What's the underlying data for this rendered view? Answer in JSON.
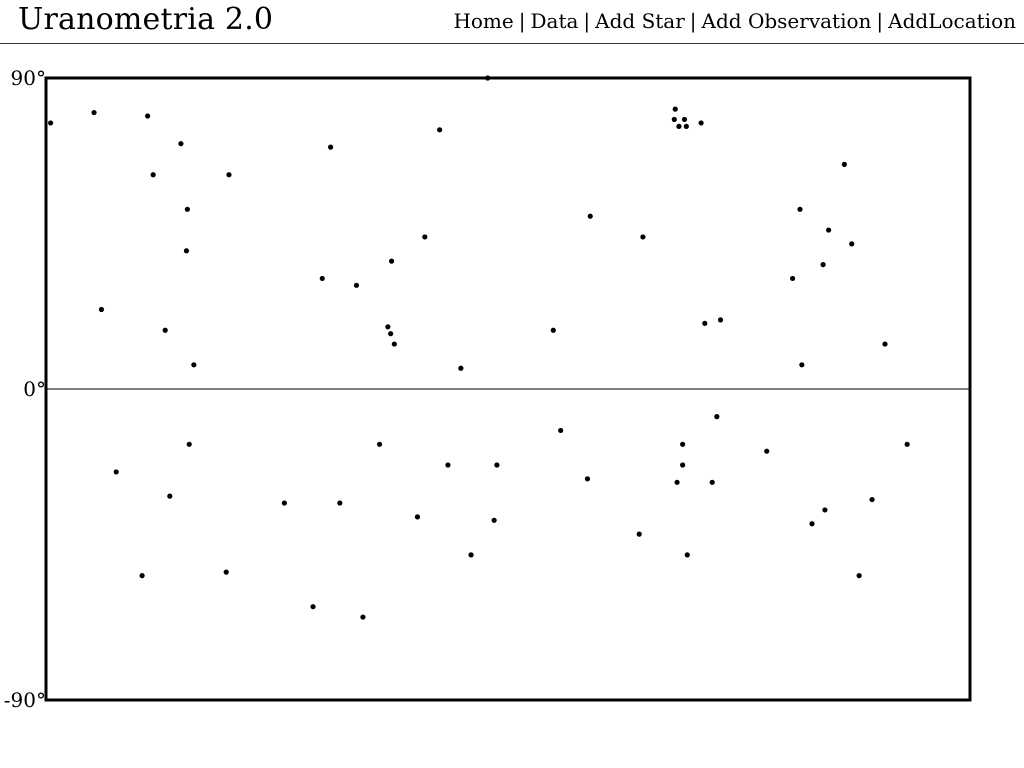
{
  "header": {
    "site_title": "Uranometria 2.0",
    "nav": [
      {
        "label": "Home"
      },
      {
        "label": "Data"
      },
      {
        "label": "Add Star"
      },
      {
        "label": "Add Observation"
      },
      {
        "label": "AddLocation"
      }
    ],
    "separator": "|"
  },
  "colors": {
    "background": "#ffffff",
    "ink": "#000000"
  },
  "chart_data": {
    "type": "scatter",
    "title": "",
    "xlabel": "",
    "ylabel": "",
    "ylim": [
      -90,
      90
    ],
    "xlim": [
      0,
      100
    ],
    "yticks": [
      {
        "value": 90,
        "label": "90°"
      },
      {
        "value": 0,
        "label": "0°"
      },
      {
        "value": -90,
        "label": "-90°"
      }
    ],
    "grid": false,
    "reference_lines": [
      0
    ],
    "points": [
      {
        "x": 0.5,
        "y": 77
      },
      {
        "x": 5.2,
        "y": 80
      },
      {
        "x": 11.0,
        "y": 79
      },
      {
        "x": 14.6,
        "y": 71
      },
      {
        "x": 11.6,
        "y": 62
      },
      {
        "x": 19.8,
        "y": 62
      },
      {
        "x": 15.3,
        "y": 52
      },
      {
        "x": 15.2,
        "y": 40
      },
      {
        "x": 6.0,
        "y": 23
      },
      {
        "x": 12.9,
        "y": 17
      },
      {
        "x": 16.0,
        "y": 7
      },
      {
        "x": 30.8,
        "y": 70
      },
      {
        "x": 42.6,
        "y": 75
      },
      {
        "x": 47.8,
        "y": 90
      },
      {
        "x": 29.9,
        "y": 32
      },
      {
        "x": 33.6,
        "y": 30
      },
      {
        "x": 37.4,
        "y": 37
      },
      {
        "x": 41.0,
        "y": 44
      },
      {
        "x": 37.0,
        "y": 18
      },
      {
        "x": 37.3,
        "y": 16
      },
      {
        "x": 37.7,
        "y": 13
      },
      {
        "x": 44.9,
        "y": 6
      },
      {
        "x": 54.9,
        "y": 17
      },
      {
        "x": 58.9,
        "y": 50
      },
      {
        "x": 64.6,
        "y": 44
      },
      {
        "x": 68.1,
        "y": 81
      },
      {
        "x": 68.0,
        "y": 78
      },
      {
        "x": 68.5,
        "y": 76
      },
      {
        "x": 69.1,
        "y": 78
      },
      {
        "x": 69.3,
        "y": 76
      },
      {
        "x": 70.9,
        "y": 77
      },
      {
        "x": 71.3,
        "y": 19
      },
      {
        "x": 73.0,
        "y": 20
      },
      {
        "x": 80.8,
        "y": 32
      },
      {
        "x": 81.6,
        "y": 52
      },
      {
        "x": 81.8,
        "y": 7
      },
      {
        "x": 84.1,
        "y": 36
      },
      {
        "x": 84.7,
        "y": 46
      },
      {
        "x": 86.4,
        "y": 65
      },
      {
        "x": 87.2,
        "y": 42
      },
      {
        "x": 90.8,
        "y": 13
      },
      {
        "x": 7.6,
        "y": -24
      },
      {
        "x": 15.5,
        "y": -16
      },
      {
        "x": 13.4,
        "y": -31
      },
      {
        "x": 10.4,
        "y": -54
      },
      {
        "x": 19.5,
        "y": -53
      },
      {
        "x": 25.8,
        "y": -33
      },
      {
        "x": 28.9,
        "y": -63
      },
      {
        "x": 31.8,
        "y": -33
      },
      {
        "x": 34.3,
        "y": -66
      },
      {
        "x": 36.1,
        "y": -16
      },
      {
        "x": 40.2,
        "y": -37
      },
      {
        "x": 43.5,
        "y": -22
      },
      {
        "x": 46.0,
        "y": -48
      },
      {
        "x": 48.8,
        "y": -22
      },
      {
        "x": 48.5,
        "y": -38
      },
      {
        "x": 55.7,
        "y": -12
      },
      {
        "x": 58.6,
        "y": -26
      },
      {
        "x": 64.2,
        "y": -42
      },
      {
        "x": 68.3,
        "y": -27
      },
      {
        "x": 68.9,
        "y": -16
      },
      {
        "x": 68.9,
        "y": -22
      },
      {
        "x": 69.4,
        "y": -48
      },
      {
        "x": 72.1,
        "y": -27
      },
      {
        "x": 72.6,
        "y": -8
      },
      {
        "x": 78.0,
        "y": -18
      },
      {
        "x": 82.9,
        "y": -39
      },
      {
        "x": 84.3,
        "y": -35
      },
      {
        "x": 89.4,
        "y": -32
      },
      {
        "x": 88.0,
        "y": -54
      },
      {
        "x": 93.2,
        "y": -16
      }
    ]
  }
}
